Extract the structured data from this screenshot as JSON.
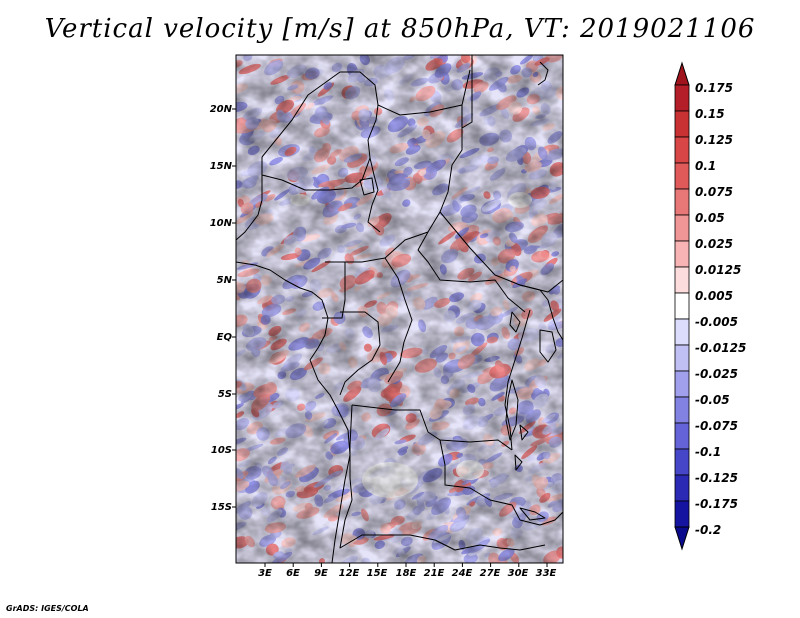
{
  "title": "Vertical velocity [m/s] at 850hPa, VT: 2019021106",
  "credit": "GrADS: IGES/COLA",
  "map": {
    "variable": "Vertical velocity",
    "units": "m/s",
    "level": "850hPa",
    "valid_time": "2019021106",
    "region": "Central Africa",
    "lat_labels": [
      "20N",
      "15N",
      "10N",
      "5N",
      "EQ",
      "5S",
      "10S",
      "15S"
    ],
    "lon_labels": [
      "3E",
      "6E",
      "9E",
      "12E",
      "15E",
      "18E",
      "21E",
      "24E",
      "27E",
      "30E",
      "33E"
    ]
  },
  "colorbar": {
    "labels": [
      "0.175",
      "0.15",
      "0.125",
      "0.1",
      "0.075",
      "0.05",
      "0.025",
      "0.0125",
      "0.005",
      "-0.005",
      "-0.0125",
      "-0.025",
      "-0.05",
      "-0.075",
      "-0.1",
      "-0.125",
      "-0.175",
      "-0.2"
    ],
    "colors": [
      "#a0141e",
      "#b41e28",
      "#c83232",
      "#d84646",
      "#e05a5a",
      "#e87878",
      "#f09696",
      "#f8b4b4",
      "#fcdcdc",
      "#ffffff",
      "#dcdcfc",
      "#c0c0f4",
      "#a0a0ec",
      "#8282e2",
      "#6464d8",
      "#4646c8",
      "#2a2ab4",
      "#1414a0",
      "#0a0a8c"
    ]
  }
}
